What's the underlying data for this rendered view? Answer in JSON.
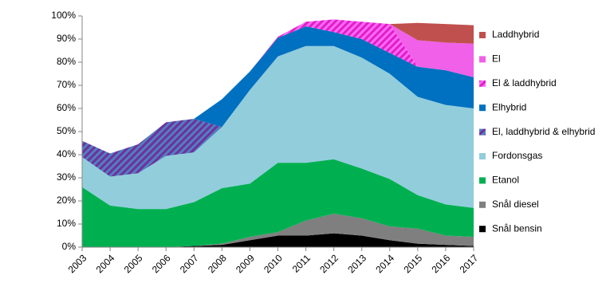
{
  "chart_data": {
    "type": "stacked_area",
    "categories": [
      "2003",
      "2004",
      "2005",
      "2006",
      "2007",
      "2008",
      "2009",
      "2010",
      "2011",
      "2012",
      "2013",
      "2014",
      "2015",
      "2016",
      "2017"
    ],
    "series": [
      {
        "name": "Snål bensin",
        "color": "#000000",
        "values": [
          0,
          0,
          0,
          0,
          0.5,
          1,
          3,
          5,
          5,
          6,
          5,
          3,
          1.5,
          1,
          0.5
        ]
      },
      {
        "name": "Snål diesel",
        "color": "#7f7f7f",
        "values": [
          0,
          0,
          0,
          0,
          0,
          0.5,
          1.5,
          1.5,
          6.5,
          8.5,
          7.5,
          6,
          6.5,
          4,
          4
        ]
      },
      {
        "name": "Etanol",
        "color": "#00b050",
        "values": [
          26,
          18,
          16.5,
          16.5,
          19,
          24,
          23,
          30,
          25,
          23.5,
          21.5,
          20.5,
          14.5,
          13.5,
          12.5
        ]
      },
      {
        "name": "Fordonsgas",
        "color": "#92cddc",
        "values": [
          13,
          12.5,
          15.5,
          23,
          21.5,
          26.5,
          40.5,
          46,
          50.5,
          49,
          48,
          45.5,
          42.5,
          43,
          43
        ]
      },
      {
        "name": "El, laddhybrid & elhybrid",
        "color": "#7030a0",
        "hatch": "#4f81bd",
        "values": [
          7,
          10,
          12.5,
          14.5,
          14.5,
          0,
          0,
          0,
          0,
          0,
          0,
          0,
          0,
          0,
          0
        ]
      },
      {
        "name": "Elhybrid",
        "color": "#0070c0",
        "values": [
          0,
          0,
          0,
          0,
          0,
          12,
          8,
          8,
          8.5,
          6,
          8,
          9,
          13,
          15,
          13.5
        ]
      },
      {
        "name": "El & laddhybrid",
        "color": "#e020c0",
        "hatch": "#ff66ff",
        "values": [
          0,
          0,
          0,
          0,
          0,
          0,
          0,
          0.5,
          2,
          5.5,
          7.5,
          12.5,
          0,
          0,
          0
        ]
      },
      {
        "name": "El",
        "color": "#f060e8",
        "values": [
          0,
          0,
          0,
          0,
          0,
          0,
          0,
          0,
          0,
          0,
          0,
          0,
          11.5,
          12,
          14.5
        ]
      },
      {
        "name": "Laddhybrid",
        "color": "#c0504d",
        "values": [
          0,
          0,
          0,
          0,
          0,
          0,
          0,
          0,
          0,
          0,
          0,
          0,
          7.5,
          8,
          8
        ]
      }
    ],
    "ylim": [
      0,
      100
    ],
    "yticks": [
      {
        "value": 0,
        "label": "0%"
      },
      {
        "value": 10,
        "label": "10%"
      },
      {
        "value": 20,
        "label": "20%"
      },
      {
        "value": 30,
        "label": "30%"
      },
      {
        "value": 40,
        "label": "40%"
      },
      {
        "value": 50,
        "label": "50%"
      },
      {
        "value": 60,
        "label": "60%"
      },
      {
        "value": 70,
        "label": "70%"
      },
      {
        "value": 80,
        "label": "80%"
      },
      {
        "value": 90,
        "label": "90%"
      },
      {
        "value": 100,
        "label": "100%"
      }
    ],
    "grid": false,
    "legend": "right"
  }
}
